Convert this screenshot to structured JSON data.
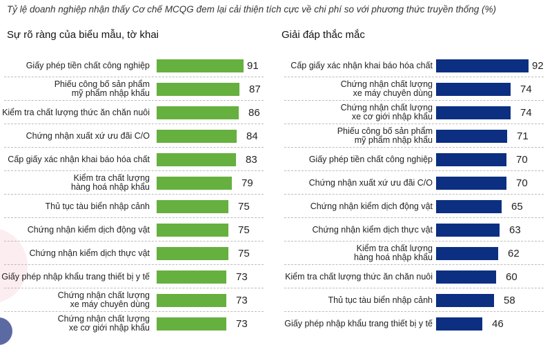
{
  "header": {
    "title": "Tỷ lệ doanh nghiệp nhận thấy Cơ chế MCQG đem lại cải thiện tích cực về chi phí so với phương thức truyền thống (%)"
  },
  "colors": {
    "left_bar": "#66b03f",
    "right_bar": "#0c2f82"
  },
  "chart_data": [
    {
      "type": "bar",
      "orientation": "horizontal",
      "title": "Sự rõ ràng của biểu mẫu, tờ khai",
      "xlabel": "",
      "ylabel": "",
      "xlim": [
        0,
        100
      ],
      "color": "#66b03f",
      "categories": [
        "Giấy phép tiền chất công nghiệp",
        "Phiếu công bố sản phẩm mỹ phẩm nhập khẩu",
        "Kiểm tra chất lượng thức ăn chăn nuôi",
        "Chứng nhận xuất xứ ưu đãi C/O",
        "Cấp giấy xác nhận khai báo hóa chất",
        "Kiểm tra chất lượng hàng hoá nhập khẩu",
        "Thủ tục tàu biển nhập cảnh",
        "Chứng nhận kiểm dịch động vật",
        "Chứng nhận kiểm dịch thực vật",
        "Giấy phép nhập khẩu trang thiết bị y tế",
        "Chứng nhận chất lượng xe máy chuyên dùng",
        "Chứng nhận chất lượng xe cơ giới nhập khẩu"
      ],
      "values": [
        91,
        87,
        86,
        84,
        83,
        79,
        75,
        75,
        75,
        73,
        73,
        73
      ]
    },
    {
      "type": "bar",
      "orientation": "horizontal",
      "title": "Giải đáp thắc mắc",
      "xlabel": "",
      "ylabel": "",
      "xlim": [
        0,
        100
      ],
      "color": "#0c2f82",
      "categories": [
        "Cấp giấy xác nhận khai báo hóa chất",
        "Chứng nhận chất lượng xe máy chuyên dùng",
        "Chứng nhận chất lượng xe cơ giới nhập khẩu",
        "Phiếu công bố sản phẩm mỹ phẩm nhập khẩu",
        "Giấy phép tiền chất công nghiệp",
        "Chứng nhận xuất xứ ưu đãi C/O",
        "Chứng nhận kiểm dịch động vật",
        "Chứng nhận kiểm dịch thực vật",
        "Kiểm tra chất lượng hàng hoá nhập khẩu",
        "Kiểm tra chất lượng thức ăn chăn nuôi",
        "Thủ tục tàu biển nhập cảnh",
        "Giấy phép nhập khẩu trang thiết bị y tế"
      ],
      "values": [
        92,
        74,
        74,
        71,
        70,
        70,
        65,
        63,
        62,
        60,
        58,
        46
      ]
    }
  ],
  "panels": {
    "left": {
      "title": "Sự rõ ràng của biểu mẫu, tờ khai",
      "rows": [
        {
          "label_lines": [
            "Giấy phép tiền chất công nghiệp"
          ],
          "value": "91"
        },
        {
          "label_lines": [
            "Phiếu công bố sản phẩm",
            "mỹ phẩm nhập khẩu"
          ],
          "value": "87"
        },
        {
          "label_lines": [
            "Kiểm tra chất lượng thức ăn chăn nuôi"
          ],
          "value": "86"
        },
        {
          "label_lines": [
            "Chứng nhận xuất xứ ưu đãi C/O"
          ],
          "value": "84"
        },
        {
          "label_lines": [
            "Cấp giấy xác nhận khai báo hóa chất"
          ],
          "value": "83"
        },
        {
          "label_lines": [
            "Kiểm tra chất lượng",
            "hàng hoá nhập khẩu"
          ],
          "value": "79"
        },
        {
          "label_lines": [
            "Thủ tục tàu biển nhập cảnh"
          ],
          "value": "75"
        },
        {
          "label_lines": [
            "Chứng nhận kiểm dịch động vật"
          ],
          "value": "75"
        },
        {
          "label_lines": [
            "Chứng nhận kiểm dịch thực vật"
          ],
          "value": "75"
        },
        {
          "label_lines": [
            "Giấy phép nhập khẩu trang thiết bị y tế"
          ],
          "value": "73"
        },
        {
          "label_lines": [
            "Chứng nhận chất lượng",
            "xe máy chuyên dùng"
          ],
          "value": "73"
        },
        {
          "label_lines": [
            "Chứng nhận chất lượng",
            "xe cơ giới nhập khẩu"
          ],
          "value": "73"
        }
      ]
    },
    "right": {
      "title": "Giải đáp thắc mắc",
      "rows": [
        {
          "label_lines": [
            "Cấp giấy xác nhận khai báo hóa chất"
          ],
          "value": "92"
        },
        {
          "label_lines": [
            "Chứng nhận chất lượng",
            "xe máy chuyên dùng"
          ],
          "value": "74"
        },
        {
          "label_lines": [
            "Chứng nhận chất lượng",
            "xe cơ giới nhập khẩu"
          ],
          "value": "74"
        },
        {
          "label_lines": [
            "Phiếu công bố sản phẩm",
            "mỹ phẩm nhập khẩu"
          ],
          "value": "71"
        },
        {
          "label_lines": [
            "Giấy phép tiền chất công nghiệp"
          ],
          "value": "70"
        },
        {
          "label_lines": [
            "Chứng nhận xuất xứ ưu đãi C/O"
          ],
          "value": "70"
        },
        {
          "label_lines": [
            "Chứng nhận kiểm dịch động vật"
          ],
          "value": "65"
        },
        {
          "label_lines": [
            "Chứng nhận kiểm dịch thực vật"
          ],
          "value": "63"
        },
        {
          "label_lines": [
            "Kiểm tra chất lượng",
            "hàng hoá nhập khẩu"
          ],
          "value": "62"
        },
        {
          "label_lines": [
            "Kiểm tra chất lượng thức ăn chăn nuôi"
          ],
          "value": "60"
        },
        {
          "label_lines": [
            "Thủ tục tàu biển nhập cảnh"
          ],
          "value": "58"
        },
        {
          "label_lines": [
            "Giấy phép nhập khẩu trang thiết bị y tế"
          ],
          "value": "46"
        }
      ]
    }
  }
}
